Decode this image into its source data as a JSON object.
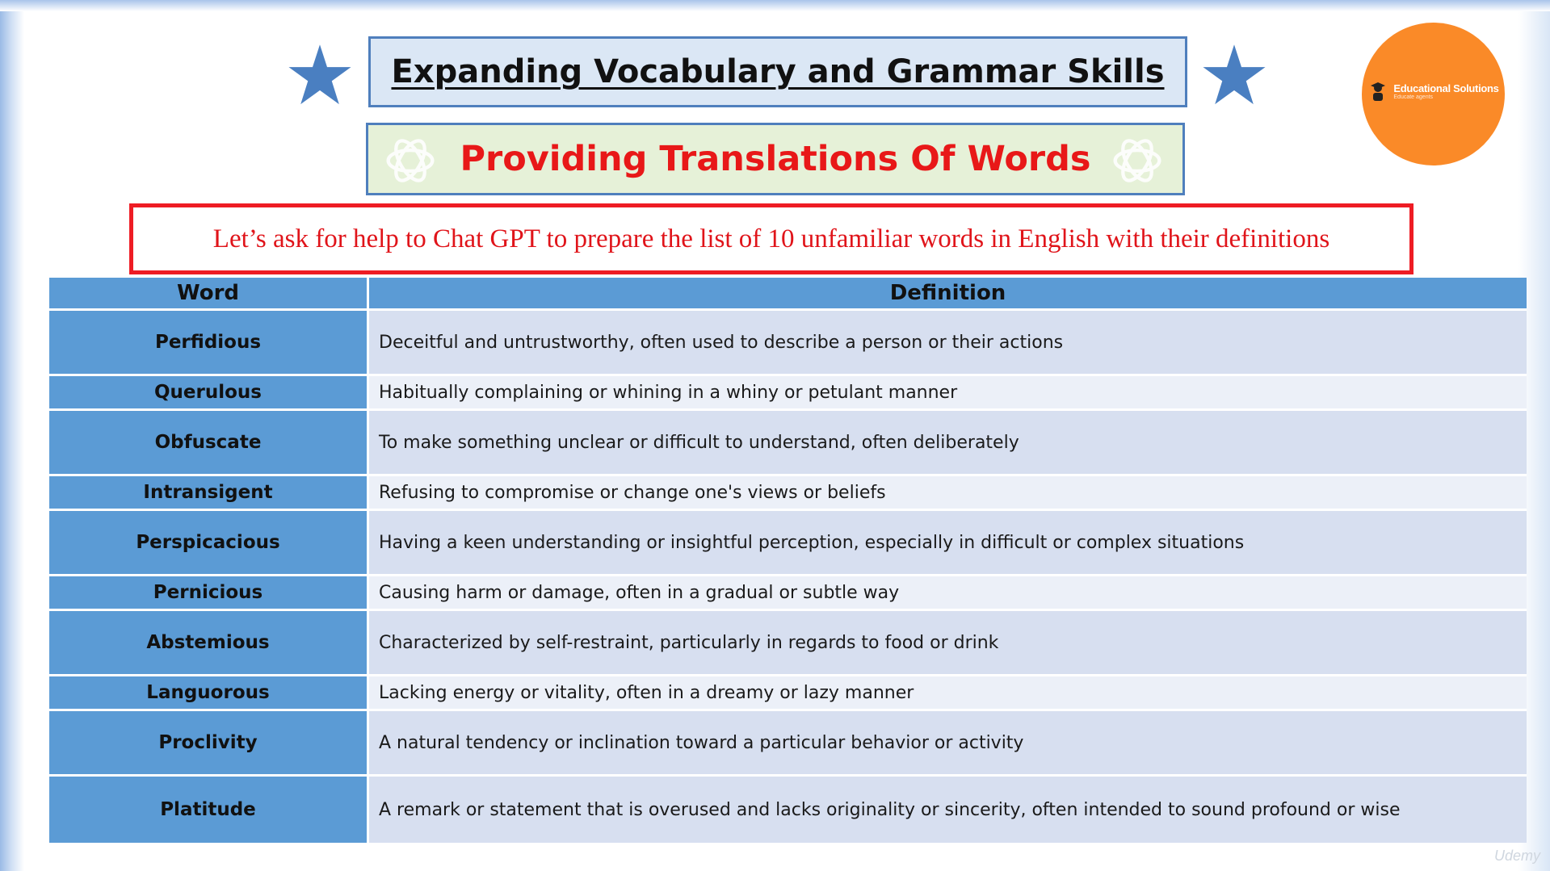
{
  "header": {
    "title": "Expanding Vocabulary and Grammar Skills",
    "subtitle": "Providing Translations Of Words"
  },
  "logo": {
    "name": "Educational Solutions",
    "tagline": "Educate agents",
    "color": "#fa8a28"
  },
  "prompt": "Let’s ask for help to Chat GPT to prepare the list of 10 unfamiliar words in English with their definitions",
  "table": {
    "headers": {
      "word": "Word",
      "definition": "Definition"
    },
    "rows": [
      {
        "word": "Perfidious",
        "definition": "Deceitful and untrustworthy, often used to describe a person or their actions"
      },
      {
        "word": "Querulous",
        "definition": "Habitually complaining or whining in a whiny or petulant manner"
      },
      {
        "word": "Obfuscate",
        "definition": "To make something unclear or difficult to understand, often deliberately"
      },
      {
        "word": "Intransigent",
        "definition": "Refusing to compromise or change one's views or beliefs"
      },
      {
        "word": "Perspicacious",
        "definition": "Having a keen understanding or insightful perception, especially in difficult or complex situations"
      },
      {
        "word": "Pernicious",
        "definition": "Causing harm or damage, often in a gradual or subtle way"
      },
      {
        "word": "Abstemious",
        "definition": "Characterized by self-restraint, particularly in regards to food or drink"
      },
      {
        "word": "Languorous",
        "definition": "Lacking energy or vitality, often in a dreamy or lazy manner"
      },
      {
        "word": "Proclivity",
        "definition": "A natural tendency or inclination toward a particular behavior or activity"
      },
      {
        "word": "Platitude",
        "definition": "A remark or statement that is overused and lacks originality or sincerity, often intended to sound profound or wise"
      }
    ]
  },
  "watermark": "Udemy",
  "colors": {
    "header_blue": "#5b9bd5",
    "accent_red": "#e81818",
    "star_blue": "#4a7fc1"
  },
  "icons": {
    "star": "star-icon",
    "gpt": "openai-logo-icon"
  }
}
